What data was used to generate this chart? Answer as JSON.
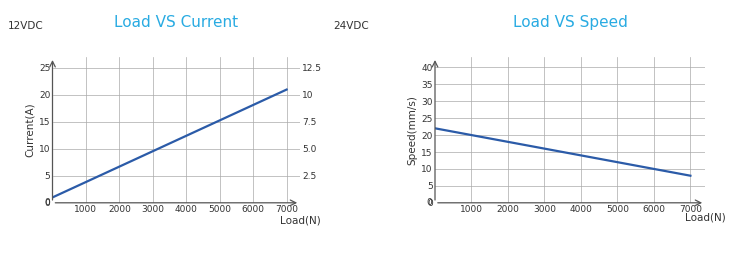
{
  "chart1": {
    "title": "Load VS Current",
    "title_color": "#29ABE2",
    "xlabel": "Load(N)",
    "ylabel": "Current(A)",
    "label_12vdc": "12VDC",
    "label_24vdc": "24VDC",
    "right_yticks": [
      2.5,
      5.0,
      7.5,
      10.0,
      12.5
    ],
    "right_yticklabels": [
      "2.5",
      "5.0",
      "7.5",
      "10",
      "12.5"
    ],
    "left_yticks": [
      0,
      5,
      10,
      15,
      20,
      25
    ],
    "left_yticklabels": [
      "0",
      "5",
      "10",
      "15",
      "20",
      "25"
    ],
    "xticks": [
      1000,
      2000,
      3000,
      4000,
      5000,
      6000,
      7000
    ],
    "xticklabels": [
      "1000",
      "2000",
      "3000",
      "4000",
      "5000",
      "6000",
      "7000"
    ],
    "xlim": [
      0,
      7400
    ],
    "ylim": [
      0,
      27
    ],
    "ylim_right": [
      0,
      13.5
    ],
    "line_x": [
      0,
      7000
    ],
    "line_y": [
      1,
      21
    ],
    "line_color": "#2B5BA8",
    "line_width": 1.6,
    "grid_color": "#AAAAAA",
    "grid_lw": 0.5,
    "axis_color": "#555555",
    "tick_color": "#333333"
  },
  "chart2": {
    "title": "Load VS Speed",
    "title_color": "#29ABE2",
    "xlabel": "Load(N)",
    "ylabel": "Speed(mm/s)",
    "left_yticks": [
      0,
      5,
      10,
      15,
      20,
      25,
      30,
      35,
      40
    ],
    "left_yticklabels": [
      "0",
      "5",
      "10",
      "15",
      "20",
      "25",
      "30",
      "35",
      "40"
    ],
    "xticks": [
      1000,
      2000,
      3000,
      4000,
      5000,
      6000,
      7000
    ],
    "xticklabels": [
      "1000",
      "2000",
      "3000",
      "4000",
      "5000",
      "6000",
      "7000"
    ],
    "xlim": [
      0,
      7400
    ],
    "ylim": [
      0,
      43
    ],
    "line_x": [
      0,
      7000
    ],
    "line_y": [
      22,
      8
    ],
    "line_color": "#2B5BA8",
    "line_width": 1.6,
    "grid_color": "#AAAAAA",
    "grid_lw": 0.5,
    "axis_color": "#555555",
    "tick_color": "#333333"
  },
  "bg_color": "#FFFFFF",
  "tick_fontsize": 6.5,
  "label_fontsize": 7.5,
  "title_fontsize": 11
}
